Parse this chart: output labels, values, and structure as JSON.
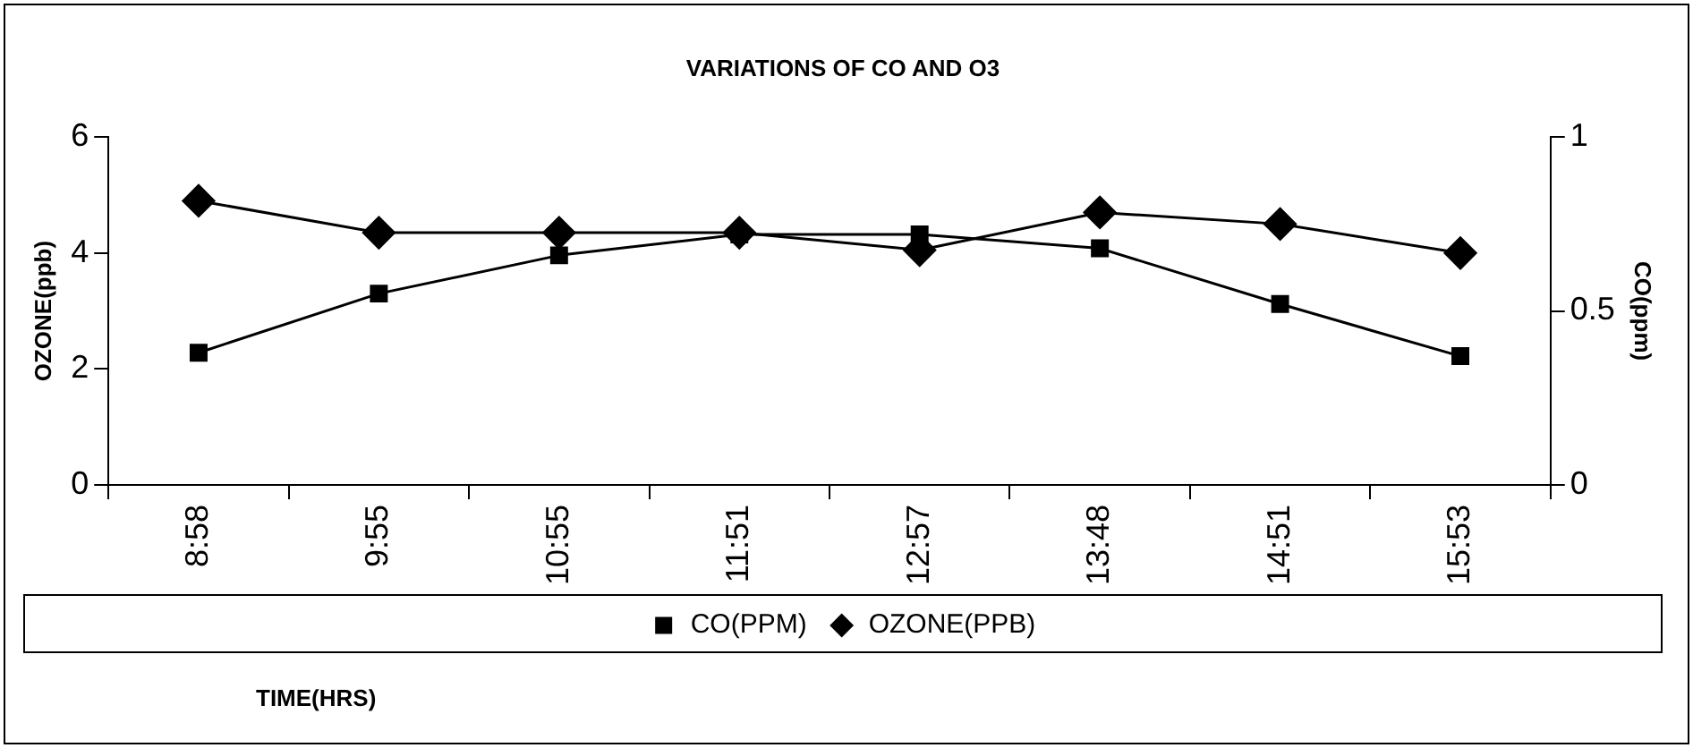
{
  "chart_data": {
    "type": "line",
    "title": "VARIATIONS OF CO AND O3",
    "xlabel": "TIME(HRS)",
    "ylabel": "OZONE(ppb)",
    "y2label": "CO(ppm)",
    "categories": [
      "8:58",
      "9:55",
      "10:55",
      "11:51",
      "12:57",
      "13:48",
      "14:51",
      "15:53"
    ],
    "series": [
      {
        "name": "CO(PPM)",
        "color": "#000000",
        "axis": "y2",
        "marker": "square",
        "values": [
          0.38,
          0.55,
          0.66,
          0.72,
          0.72,
          0.68,
          0.52,
          0.37
        ]
      },
      {
        "name": "OZONE(PPB)",
        "color": "#000000",
        "marker": "diamond",
        "values": [
          4.9,
          4.35,
          4.35,
          4.35,
          4.05,
          4.7,
          4.5,
          4.0
        ]
      }
    ],
    "ylim": [
      0,
      6
    ],
    "yticks": [
      0,
      2,
      4,
      6
    ],
    "y2lim": [
      0,
      1
    ],
    "y2ticks": [
      0,
      0.5,
      1
    ],
    "grid": false,
    "legend": "bottom",
    "line_style": "solid"
  }
}
